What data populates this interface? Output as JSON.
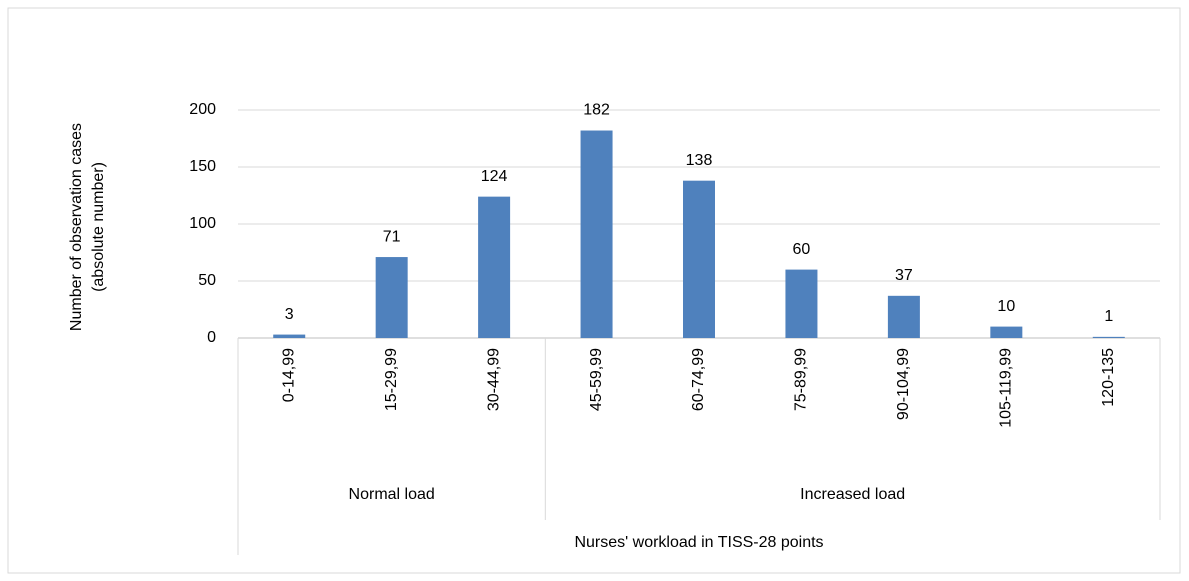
{
  "chart_data": {
    "type": "bar",
    "y_label": "Number of observation cases (absolute number)",
    "x_label": "Nurses' workload in TISS-28 points",
    "color": "#4f81bd",
    "groups": [
      {
        "name": "Normal load",
        "categories": [
          "0-14,99",
          "15-29,99",
          "30-44,99"
        ],
        "values": [
          3,
          71,
          124
        ]
      },
      {
        "name": "Increased load",
        "categories": [
          "45-59,99",
          "60-74,99",
          "75-89,99",
          "90-104,99",
          "105-119,99",
          "120-135"
        ],
        "values": [
          182,
          138,
          60,
          37,
          10,
          1
        ]
      }
    ],
    "ylim": [
      0,
      200
    ],
    "yticks": [
      0,
      50,
      100,
      150,
      200
    ],
    "grid": true
  }
}
